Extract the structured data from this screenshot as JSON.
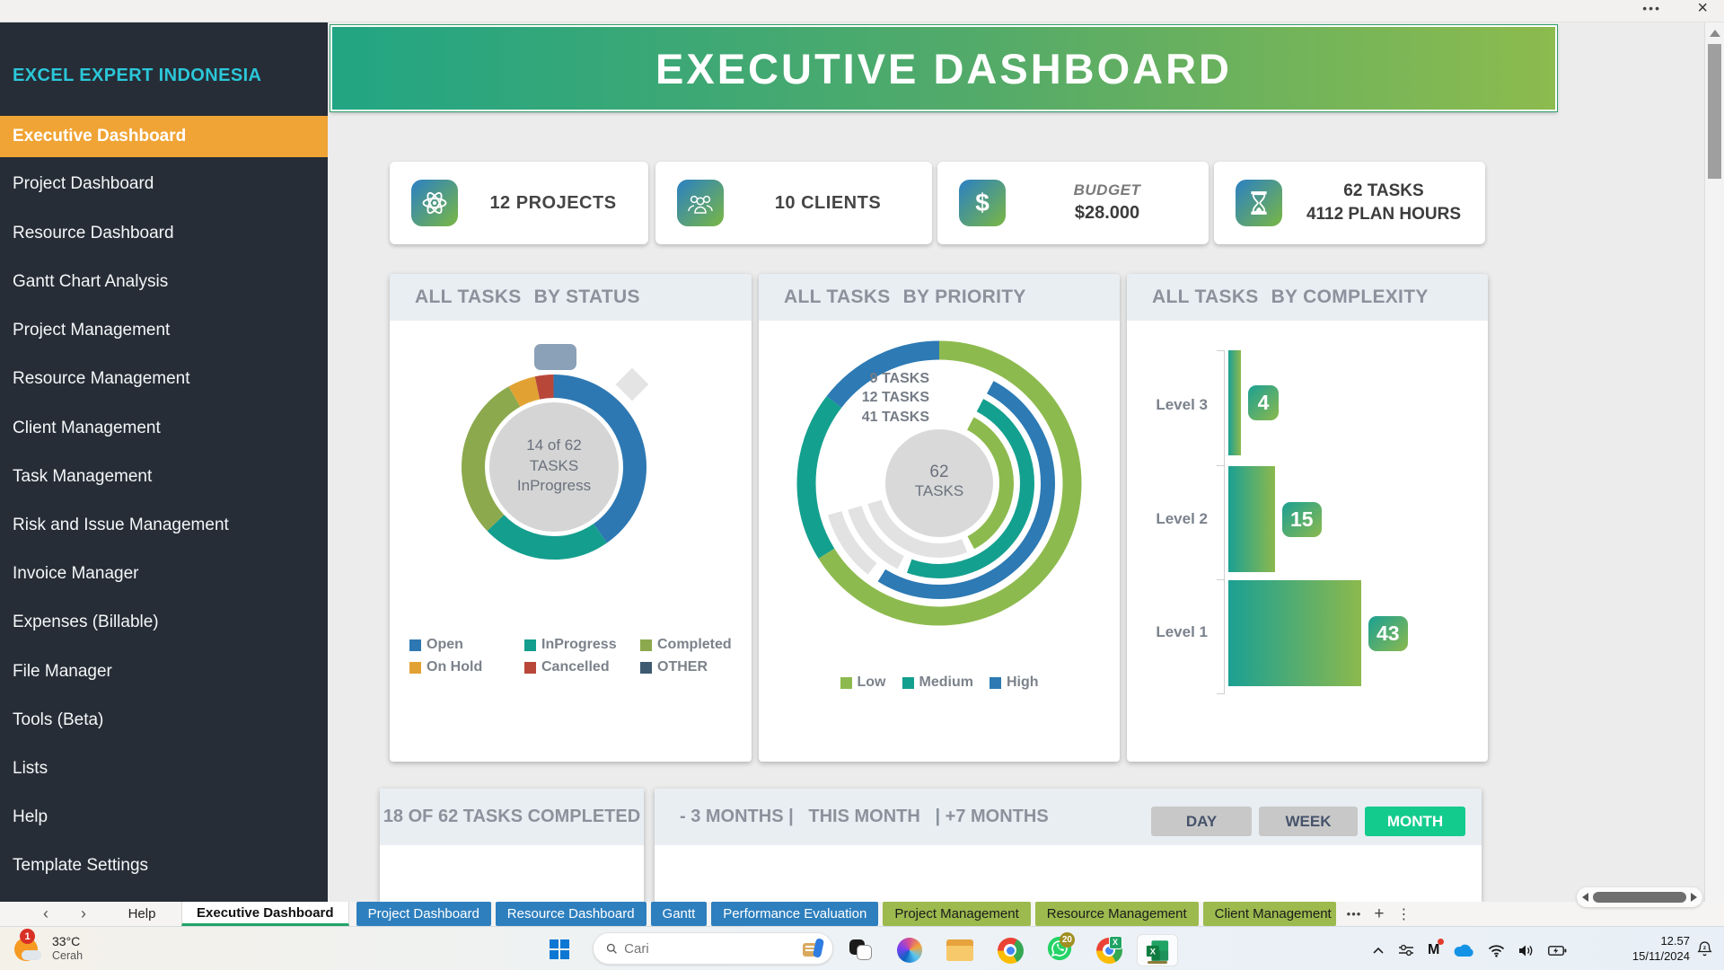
{
  "window": {
    "more": "•••",
    "close": "×"
  },
  "colors": {
    "sidebar_bg": "#262d36",
    "brand_cyan": "#2bc7d9",
    "active_orange": "#f0a435",
    "banner_gradient": [
      "#22a583",
      "#8cbb4e"
    ],
    "kpi_icon_gradient": [
      "#2a80c4",
      "#7ab743"
    ],
    "panel_header_bg": "#e9eef3",
    "month_active_green": "#14cb8e",
    "tab_blue": "#2e7fbe",
    "tab_green": "#9cba4e",
    "excel_green": "#21a366",
    "whatsapp_green": "#25d366",
    "badge_red": "#d93025"
  },
  "sidebar": {
    "brand": "EXCEL EXPERT INDONESIA",
    "items": [
      {
        "label": "Executive Dashboard",
        "active": true
      },
      {
        "label": "Project Dashboard"
      },
      {
        "label": "Resource Dashboard"
      },
      {
        "label": "Gantt Chart Analysis"
      },
      {
        "label": "Project Management"
      },
      {
        "label": "Resource Management"
      },
      {
        "label": "Client Management"
      },
      {
        "label": "Task Management"
      },
      {
        "label": "Risk and Issue Management"
      },
      {
        "label": "Invoice Manager"
      },
      {
        "label": "Expenses (Billable)"
      },
      {
        "label": "File Manager"
      },
      {
        "label": "Tools (Beta)"
      },
      {
        "label": "Lists"
      },
      {
        "label": "Help"
      },
      {
        "label": "Template Settings"
      }
    ]
  },
  "banner": {
    "title": "EXECUTIVE DASHBOARD"
  },
  "kpis": {
    "projects": {
      "value": "12 PROJECTS"
    },
    "clients": {
      "value": "10 CLIENTS"
    },
    "budget": {
      "label": "BUDGET",
      "value": "$28.000"
    },
    "tasks": {
      "line1": "62 TASKS",
      "line2": "4112 PLAN HOURS"
    }
  },
  "status_panel": {
    "title1": "ALL TASKS",
    "title2": "BY STATUS",
    "center1": "14 of 62",
    "center2": "TASKS",
    "center3": "InProgress",
    "legend": [
      {
        "label": "Open",
        "color": "#2d78b2"
      },
      {
        "label": "InProgress",
        "color": "#149e8e"
      },
      {
        "label": "Completed",
        "color": "#8ca94d"
      },
      {
        "label": "On Hold",
        "color": "#e2a233"
      },
      {
        "label": "Cancelled",
        "color": "#b8473a"
      },
      {
        "label": "OTHER",
        "color": "#3e5a70"
      }
    ]
  },
  "priority_panel": {
    "title1": "ALL TASKS",
    "title2": "BY PRIORITY",
    "labels": [
      "9 TASKS",
      "12 TASKS",
      "41 TASKS"
    ],
    "center1": "62",
    "center2": "TASKS",
    "legend": [
      {
        "label": "Low",
        "color": "#8dba4e"
      },
      {
        "label": "Medium",
        "color": "#14a08f"
      },
      {
        "label": "High",
        "color": "#2d7ab4"
      }
    ]
  },
  "complexity_panel": {
    "title1": "ALL TASKS",
    "title2": "BY COMPLEXITY",
    "rows": [
      {
        "label": "Level 3",
        "value": "4"
      },
      {
        "label": "Level 2",
        "value": "15"
      },
      {
        "label": "Level 1",
        "value": "43"
      }
    ]
  },
  "bottom": {
    "completed_title": "18 OF 62 TASKS COMPLETED",
    "timeline_title": "- 3 MONTHS |   THIS MONTH   | +7 MONTHS",
    "day": "DAY",
    "week": "WEEK",
    "month": "MONTH"
  },
  "sheet_tabs": {
    "prev": "‹",
    "next": "›",
    "help": "Help",
    "active": "Executive Dashboard",
    "blue": [
      "Project Dashboard",
      "Resource Dashboard",
      "Gantt",
      "Performance Evaluation"
    ],
    "green": [
      "Project Management",
      "Resource Management",
      "Client Management"
    ],
    "overflow": "•••",
    "add": "+",
    "menu": "⋮"
  },
  "taskbar": {
    "weather_badge": "1",
    "weather_temp": "33°C",
    "weather_desc": "Cerah",
    "search_placeholder": "Cari",
    "whatsapp_badge": "20",
    "time": "12.57",
    "date": "15/11/2024"
  },
  "chart_data": [
    {
      "type": "pie",
      "subtype": "donut",
      "title": "ALL TASKS BY STATUS",
      "categories": [
        "Open",
        "InProgress",
        "Completed",
        "On Hold",
        "Cancelled"
      ],
      "values": [
        25,
        14,
        18,
        3,
        2
      ],
      "colors": [
        "#2d78b2",
        "#149e8e",
        "#8ca94d",
        "#e2a233",
        "#b8473a"
      ],
      "total": 62,
      "center_text": "14 of 62 TASKS InProgress",
      "legend_position": "bottom"
    },
    {
      "type": "pie",
      "subtype": "multi-ring-donut",
      "title": "ALL TASKS BY PRIORITY",
      "categories": [
        "Low",
        "Medium",
        "High"
      ],
      "values": [
        41,
        12,
        9
      ],
      "colors": [
        "#8dba4e",
        "#14a08f",
        "#2d7ab4"
      ],
      "total": 62,
      "center_text": "62 TASKS",
      "rings": [
        {
          "label": "9 TASKS",
          "color": "#2d7ab4",
          "start_deg": 28,
          "end_deg": 212,
          "rest_end_deg": 254
        },
        {
          "label": "12 TASKS",
          "color": "#14a08f",
          "start_deg": 28,
          "end_deg": 200,
          "rest_end_deg": 254
        },
        {
          "label": "41 TASKS",
          "color": "#8dba4e",
          "start_deg": 28,
          "end_deg": 152,
          "rest_end_deg": 254
        }
      ],
      "legend_position": "bottom"
    },
    {
      "type": "bar",
      "orientation": "horizontal",
      "title": "ALL TASKS BY COMPLEXITY",
      "categories": [
        "Level 3",
        "Level 2",
        "Level 1"
      ],
      "values": [
        4,
        15,
        43
      ],
      "xlim": [
        0,
        43
      ],
      "data_labels": [
        4,
        15,
        43
      ],
      "bar_gradient": [
        "#1ba093",
        "#8cb94d"
      ]
    }
  ]
}
